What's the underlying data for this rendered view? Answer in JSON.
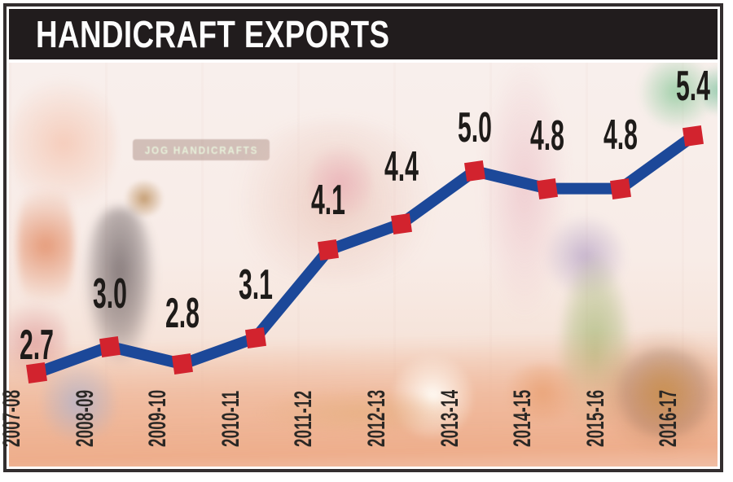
{
  "title": "HANDICRAFT EXPORTS",
  "colors": {
    "titlebar_bg": "#211c1d",
    "title_text": "#fdfdfd",
    "line": "#1c4899",
    "marker": "#d2232e",
    "label_text": "#1e1b19",
    "tick_text": "#2b2825"
  },
  "background_photo": {
    "sign_text": "JOG HANDICRAFTS"
  },
  "chart_data": {
    "type": "line",
    "title": "HANDICRAFT EXPORTS",
    "categories": [
      "2007-08",
      "2008-09",
      "2009-10",
      "2010-11",
      "2011-12",
      "2012-13",
      "2013-14",
      "2014-15",
      "2015-16",
      "2016-17"
    ],
    "values": [
      2.7,
      3.0,
      2.8,
      3.1,
      4.1,
      4.4,
      5.0,
      4.8,
      4.8,
      5.4
    ],
    "data_labels": [
      "2.7",
      "3.0",
      "2.8",
      "3.1",
      "4.1",
      "4.4",
      "5.0",
      "4.8",
      "4.8",
      "5.4"
    ],
    "series_name": "Handicraft exports",
    "marker_shape": "square",
    "xlabel": "",
    "ylabel": "",
    "ylim": [
      2.4,
      5.7
    ],
    "grid": false,
    "legend": false,
    "axes_visible": false,
    "x_tick_rotation": -90,
    "label_dy": [
      -34,
      -65,
      -62,
      -65,
      -61,
      -70,
      -53,
      -65,
      -66,
      -61
    ]
  }
}
